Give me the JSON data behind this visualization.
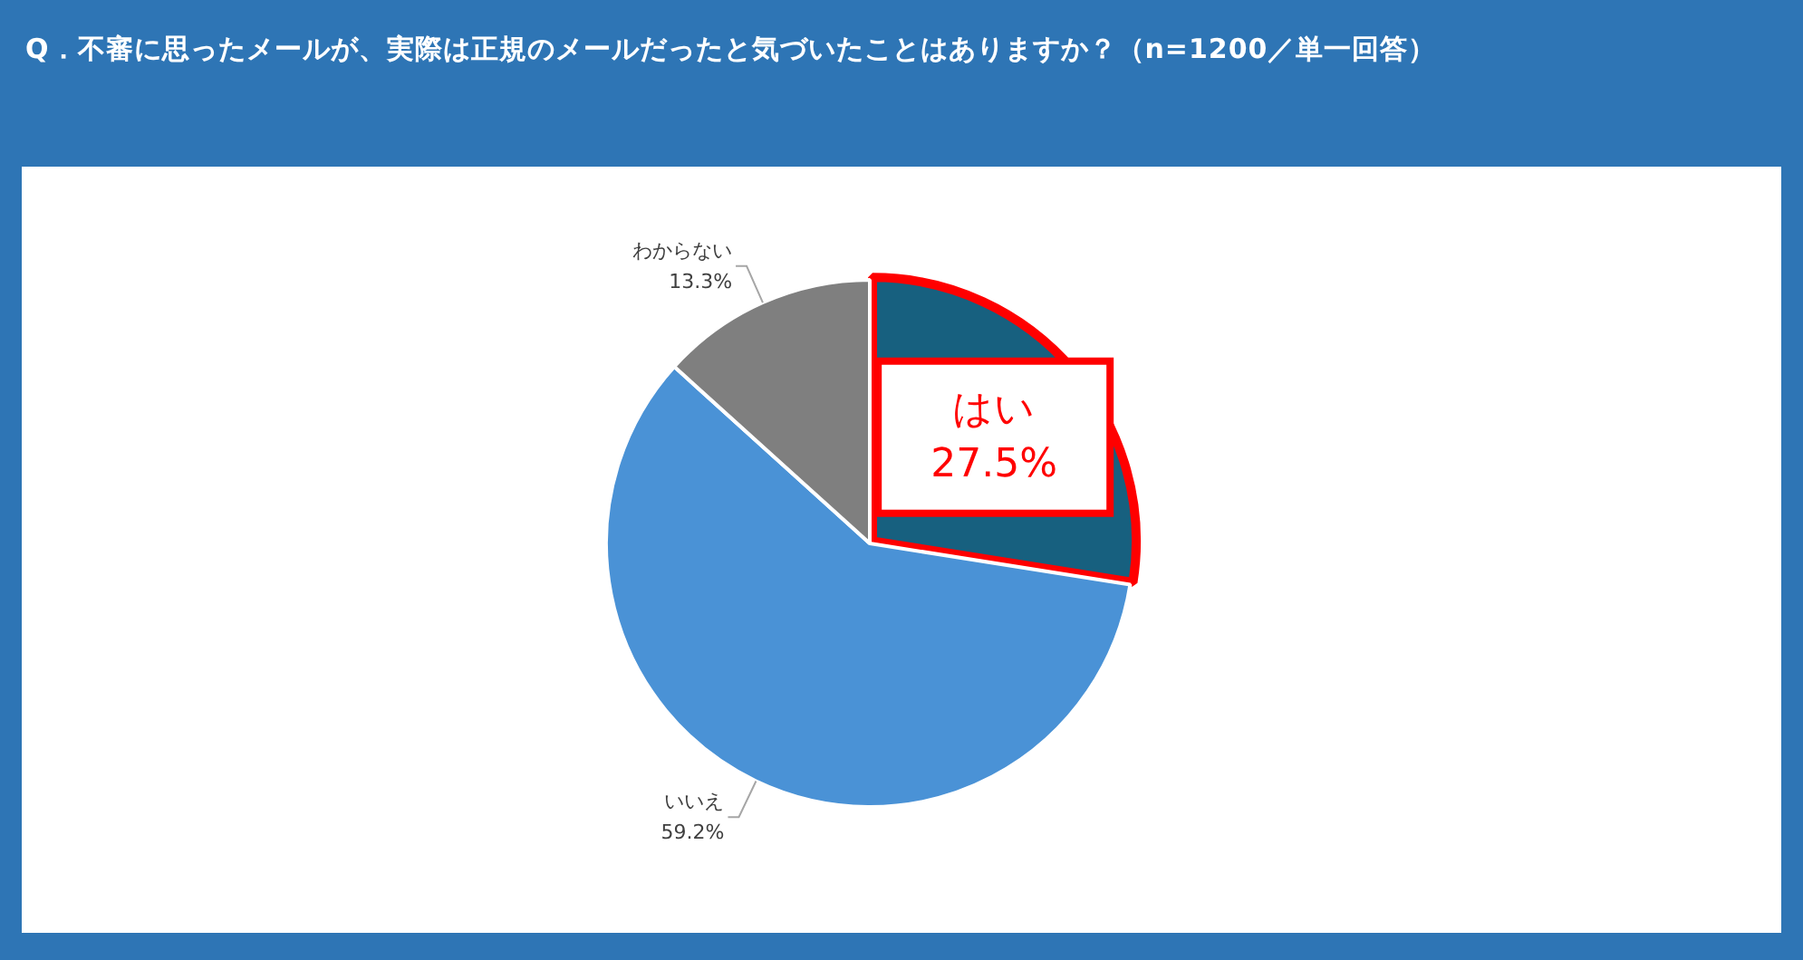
{
  "chart_data": {
    "type": "pie",
    "title": "Q．不審に思ったメールが、実際は正規のメールだったと気づいたことはありますか？（n=1200／単一回答）",
    "categories": [
      "はい",
      "いいえ",
      "わからない"
    ],
    "values": [
      27.5,
      59.2,
      13.3
    ],
    "colors": [
      "#17607f",
      "#4a92d6",
      "#7f7f7f"
    ],
    "value_labels": [
      "27.5%",
      "59.2%",
      "13.3%"
    ],
    "legend": false
  }
}
